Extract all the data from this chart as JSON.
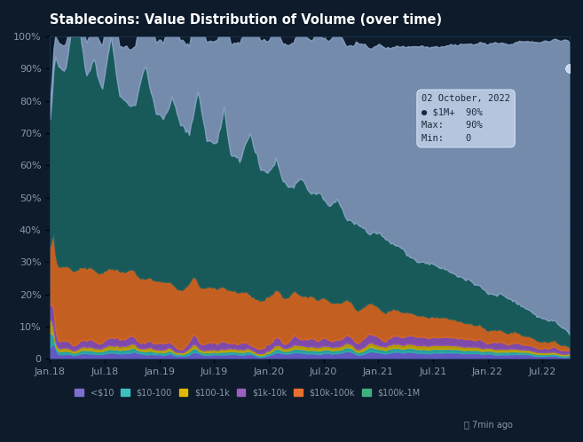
{
  "title": "Stablecoins: Value Distribution of Volume (over time)",
  "background_color": "#0d1b2a",
  "ytick_labels": [
    "0",
    "10%",
    "20%",
    "30%",
    "40%",
    "50%",
    "60%",
    "70%",
    "80%",
    "90%",
    "100%"
  ],
  "ytick_values": [
    0,
    10,
    20,
    30,
    40,
    50,
    60,
    70,
    80,
    90,
    100
  ],
  "xtick_labels": [
    "Jan.18",
    "Jul.18",
    "Jan.19",
    "Jul.19",
    "Jan.20",
    "Jul.20",
    "Jan.21",
    "Jul.21",
    "Jan.22",
    "Jul.22"
  ],
  "legend_items": [
    {
      "label": "<$10",
      "color": "#7b6fd0"
    },
    {
      "label": "$10-100",
      "color": "#3dbfbf"
    },
    {
      "label": "$100-1k",
      "color": "#e0b800"
    },
    {
      "label": "$1k-10k",
      "color": "#9b5fc0"
    },
    {
      "label": "$10k-100k",
      "color": "#e87030"
    },
    {
      "label": "$100k-1M",
      "color": "#40b080"
    }
  ],
  "tooltip": {
    "date": "02 October, 2022",
    "label": "$1M+",
    "value": "90%",
    "max": "90%",
    "min": "0"
  },
  "colors": {
    "lt10": "#6b5fd4",
    "t10_100": "#2dafaa",
    "t100_1k": "#c8a800",
    "t1k_10k": "#8b50b8",
    "t10k_100k": "#d86820",
    "t100k_1M": "#1a6060",
    "gt1M": "#8fa8cc"
  },
  "grid_color": "#1e3a5a",
  "text_color": "#ffffff",
  "axis_text_color": "#8899aa"
}
